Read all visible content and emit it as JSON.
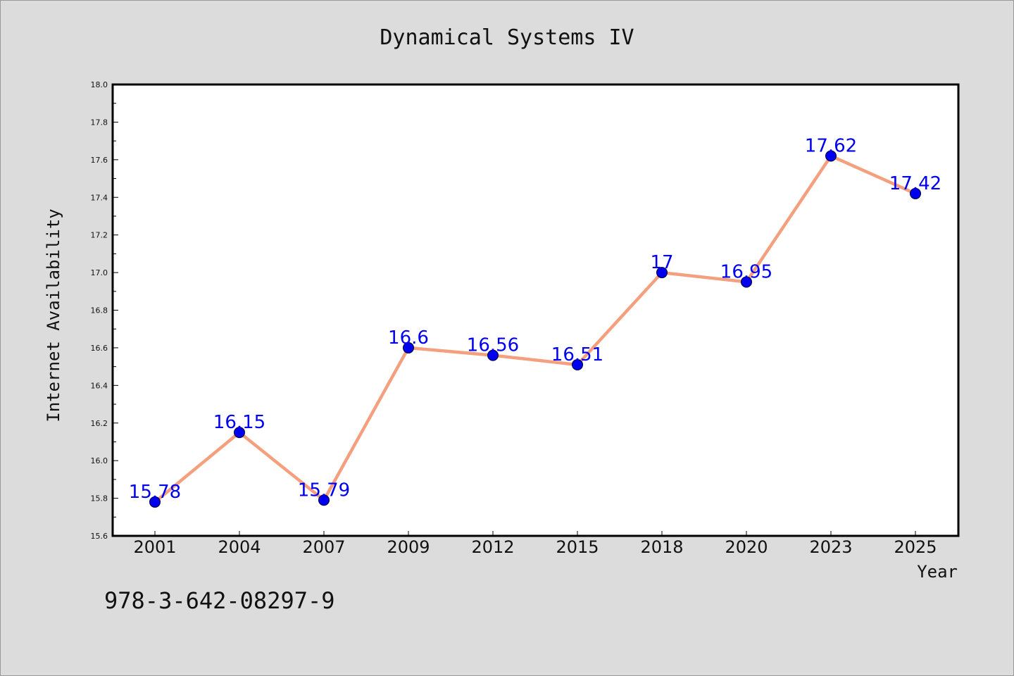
{
  "chart_data": {
    "type": "line",
    "title": "Dynamical Systems IV",
    "xlabel": "Year",
    "ylabel": "Internet Availability",
    "categories": [
      "2001",
      "2004",
      "2007",
      "2009",
      "2012",
      "2015",
      "2018",
      "2020",
      "2023",
      "2025"
    ],
    "series": [
      {
        "values": [
          15.78,
          16.15,
          15.79,
          16.6,
          16.56,
          16.51,
          17,
          16.95,
          17.62,
          17.42
        ],
        "labels": [
          "15.78",
          "16.15",
          "15.79",
          "16.6",
          "16.56",
          "16.51",
          "17",
          "16.95",
          "17.62",
          "17.42"
        ],
        "line_color": "#f4a07e",
        "marker_color": "#0000ee",
        "label_color": "#0000ee"
      }
    ],
    "ylim": [
      15.6,
      18.0
    ],
    "yticks": [
      "15.6",
      "15.8",
      "16.0",
      "16.2",
      "16.4",
      "16.6",
      "16.8",
      "17.0",
      "17.2",
      "17.4",
      "17.6",
      "17.8",
      "18.0"
    ],
    "grid": false,
    "legend": "none"
  },
  "annotation": {
    "isbn": "978-3-642-08297-9"
  },
  "colors": {
    "background": "#dcdcdc",
    "plot_background": "#ffffff",
    "axis": "#000000"
  }
}
